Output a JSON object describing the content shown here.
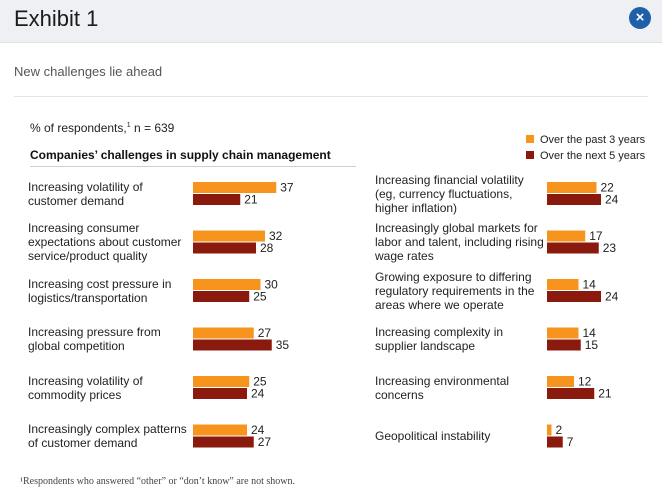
{
  "header": {
    "title": "Exhibit 1",
    "close_label": "×"
  },
  "subtitle": "New challenges lie ahead",
  "respondents": {
    "text": "% of respondents,",
    "sup": "1",
    "n": " n = 639"
  },
  "section_title": "Companies’ challenges in supply chain management",
  "legend": [
    {
      "name": "Over the past 3 years",
      "color": "#f7941d"
    },
    {
      "name": "Over the next 5 years",
      "color": "#8b1a0e"
    }
  ],
  "footnote": "¹Respondents who answered “other” or “don’t know” are not shown.",
  "chart_data": {
    "type": "bar",
    "orientation": "horizontal",
    "title": "Companies’ challenges in supply chain management",
    "unit": "% of respondents",
    "series_names": [
      "Over the past 3 years",
      "Over the next 5 years"
    ],
    "colors": [
      "#f7941d",
      "#8b1a0e"
    ],
    "left": [
      {
        "label": [
          "Increasing volatility of",
          "customer demand"
        ],
        "values": [
          37,
          21
        ]
      },
      {
        "label": [
          "Increasing consumer",
          "expectations about customer",
          "service/product quality"
        ],
        "values": [
          32,
          28
        ]
      },
      {
        "label": [
          "Increasing cost pressure in",
          "logistics/transportation"
        ],
        "values": [
          30,
          25
        ]
      },
      {
        "label": [
          "Increasing pressure from",
          "global competition"
        ],
        "values": [
          27,
          35
        ]
      },
      {
        "label": [
          "Increasing volatility of",
          "commodity prices"
        ],
        "values": [
          25,
          24
        ]
      },
      {
        "label": [
          "Increasingly complex patterns",
          "of customer demand"
        ],
        "values": [
          24,
          27
        ]
      }
    ],
    "right": [
      {
        "label": [
          "Increasing financial volatility",
          "(eg, currency fluctuations,",
          "higher inflation)"
        ],
        "values": [
          22,
          24
        ]
      },
      {
        "label": [
          "Increasingly global markets for",
          "labor and talent, including rising",
          "wage rates"
        ],
        "values": [
          17,
          23
        ]
      },
      {
        "label": [
          "Growing exposure to differing",
          "regulatory requirements in the",
          "areas where we operate"
        ],
        "values": [
          14,
          24
        ]
      },
      {
        "label": [
          "Increasing complexity in",
          "supplier landscape"
        ],
        "values": [
          14,
          15
        ]
      },
      {
        "label": [
          "Increasing environmental",
          "concerns"
        ],
        "values": [
          12,
          21
        ]
      },
      {
        "label": [
          "Geopolitical instability"
        ],
        "values": [
          2,
          7
        ]
      }
    ]
  }
}
